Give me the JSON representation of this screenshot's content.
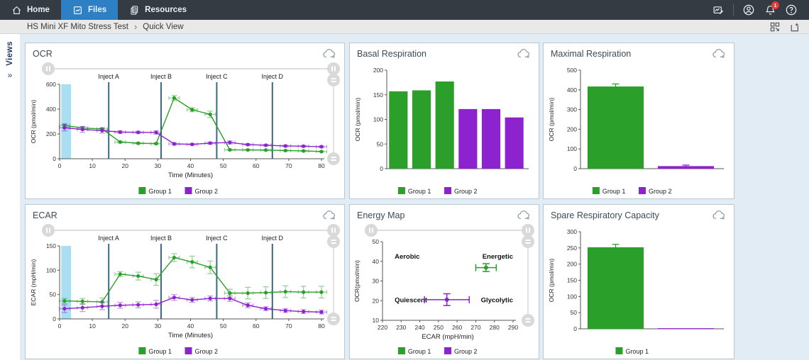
{
  "nav": {
    "tabs": [
      {
        "label": "Home",
        "icon": "home-icon"
      },
      {
        "label": "Files",
        "icon": "files-chart-icon"
      },
      {
        "label": "Resources",
        "icon": "documents-icon"
      }
    ],
    "active_tab": "Files",
    "notification_count": "1",
    "right_icons": [
      "report-edit-icon",
      "account-icon",
      "notifications-bell-icon",
      "help-icon"
    ]
  },
  "breadcrumb": {
    "parent": "HS Mini XF Mito Stress Test",
    "separator": "›",
    "current": "Quick View",
    "icons": [
      "layout-grid-icon",
      "new-view-icon"
    ]
  },
  "sidebar": {
    "label": "Views",
    "chevron": "»"
  },
  "colors": {
    "group1": "#2aa02a",
    "group2": "#8d23cf",
    "inject_line": "#3a6a80",
    "selection_band": "#9bd8f0",
    "active_tab": "#2e80c4",
    "nav_bg": "#343b42",
    "panel_border": "#b9c7d3",
    "page_bg": "#e2ecf5"
  },
  "chart_data": [
    {
      "id": "ocr",
      "type": "line",
      "title": "OCR",
      "xlabel": "Time (Minutes)",
      "ylabel": "OCR (pmol/min)",
      "xlim": [
        0,
        80
      ],
      "xticks": [
        0,
        10,
        20,
        30,
        40,
        50,
        60,
        70,
        80
      ],
      "ylim": [
        0,
        600
      ],
      "yticks": [
        0,
        200,
        400,
        600
      ],
      "inject_lines": [
        {
          "label": "Inject A",
          "x": 15
        },
        {
          "label": "Inject B",
          "x": 31
        },
        {
          "label": "Inject C",
          "x": 48
        },
        {
          "label": "Inject D",
          "x": 65
        }
      ],
      "selection_band": [
        0.5,
        3.5
      ],
      "xerr": 1.6,
      "x": [
        1.5,
        7,
        13,
        18.5,
        24,
        29.5,
        35,
        40.5,
        46,
        52,
        57.5,
        63,
        69,
        74.5,
        80
      ],
      "series": [
        {
          "name": "Group 1",
          "color": "group1",
          "values": [
            268,
            248,
            240,
            135,
            125,
            122,
            490,
            395,
            358,
            72,
            71,
            70,
            66,
            63,
            58
          ],
          "yerr": [
            15,
            12,
            9,
            7,
            6,
            6,
            20,
            16,
            26,
            4,
            4,
            4,
            4,
            4,
            4
          ]
        },
        {
          "name": "Group 2",
          "color": "group2",
          "values": [
            250,
            236,
            227,
            215,
            213,
            212,
            120,
            116,
            126,
            131,
            114,
            109,
            103,
            101,
            97
          ],
          "yerr": [
            26,
            24,
            20,
            11,
            9,
            13,
            11,
            7,
            9,
            13,
            7,
            7,
            7,
            7,
            7
          ]
        }
      ],
      "legend": [
        {
          "label": "Group 1",
          "color": "group1"
        },
        {
          "label": "Group 2",
          "color": "group2"
        }
      ],
      "has_sliders": true
    },
    {
      "id": "basal",
      "type": "bar",
      "title": "Basal Respiration",
      "ylabel": "OCR (pmol/min)",
      "ylim": [
        0,
        200
      ],
      "yticks": [
        0,
        50,
        100,
        150,
        200
      ],
      "bars": [
        {
          "group": "Group 1",
          "color": "group1",
          "value": 157
        },
        {
          "group": "Group 1",
          "color": "group1",
          "value": 159
        },
        {
          "group": "Group 1",
          "color": "group1",
          "value": 177
        },
        {
          "group": "Group 2",
          "color": "group2",
          "value": 121
        },
        {
          "group": "Group 2",
          "color": "group2",
          "value": 121
        },
        {
          "group": "Group 2",
          "color": "group2",
          "value": 104
        }
      ],
      "legend": [
        {
          "label": "Group 1",
          "color": "group1"
        },
        {
          "label": "Group 2",
          "color": "group2"
        }
      ]
    },
    {
      "id": "maximal",
      "type": "bar",
      "title": "Maximal Respiration",
      "ylabel": "OCR (pmol/min)",
      "ylim": [
        0,
        500
      ],
      "yticks": [
        0,
        100,
        200,
        300,
        400,
        500
      ],
      "bars": [
        {
          "group": "Group 1",
          "color": "group1",
          "value": 417,
          "err": 13
        },
        {
          "group": "Group 2",
          "color": "group2",
          "value": 13,
          "err": 5
        }
      ],
      "legend": [
        {
          "label": "Group 1",
          "color": "group1"
        },
        {
          "label": "Group 2",
          "color": "group2"
        }
      ]
    },
    {
      "id": "ecar",
      "type": "line",
      "title": "ECAR",
      "xlabel": "Time (Minutes)",
      "ylabel": "ECAR (mpH/min)",
      "xlim": [
        0,
        80
      ],
      "xticks": [
        0,
        10,
        20,
        30,
        40,
        50,
        60,
        70,
        80
      ],
      "ylim": [
        0,
        150
      ],
      "yticks": [
        0,
        50,
        100,
        150
      ],
      "inject_lines": [
        {
          "label": "Inject A",
          "x": 15
        },
        {
          "label": "Inject B",
          "x": 31
        },
        {
          "label": "Inject C",
          "x": 48
        },
        {
          "label": "Inject D",
          "x": 65
        }
      ],
      "selection_band": [
        0.5,
        3.5
      ],
      "xerr": 1.6,
      "x": [
        1.5,
        7,
        13,
        18.5,
        24,
        29.5,
        35,
        40.5,
        46,
        52,
        57.5,
        63,
        69,
        74.5,
        80
      ],
      "series": [
        {
          "name": "Group 1",
          "color": "group1",
          "values": [
            37,
            36,
            35,
            92,
            88,
            81,
            126,
            117,
            106,
            53,
            53,
            54,
            56,
            55,
            55
          ],
          "yerr": [
            5,
            6,
            8,
            5,
            8,
            12,
            8,
            12,
            13,
            8,
            12,
            12,
            12,
            12,
            12
          ]
        },
        {
          "name": "Group 2",
          "color": "group2",
          "values": [
            21,
            23,
            26,
            28,
            29,
            30,
            44,
            39,
            42,
            42,
            28,
            21,
            17,
            15,
            14
          ],
          "yerr": [
            8,
            8,
            7,
            6,
            6,
            8,
            6,
            5,
            5,
            6,
            5,
            4,
            4,
            4,
            4
          ]
        }
      ],
      "legend": [
        {
          "label": "Group 1",
          "color": "group1"
        },
        {
          "label": "Group 2",
          "color": "group2"
        }
      ],
      "has_sliders": true
    },
    {
      "id": "energy",
      "type": "scatter",
      "title": "Energy Map",
      "xlabel": "ECAR (mpH/min)",
      "ylabel": "OCR(pmol/min)",
      "xlim": [
        220,
        290
      ],
      "xticks": [
        220,
        230,
        240,
        250,
        260,
        270,
        280,
        290
      ],
      "ylim": [
        10,
        50
      ],
      "yticks": [
        10,
        20,
        30,
        40,
        50
      ],
      "quadrants": {
        "top_left": "Aerobic",
        "top_right": "Energetic",
        "bottom_left": "Quiescent",
        "bottom_right": "Glycolytic"
      },
      "points": [
        {
          "name": "Group 1",
          "color": "group1",
          "x": 275.5,
          "y": 36.8,
          "xerr": 5.5,
          "yerr": 2
        },
        {
          "name": "Group 2",
          "color": "group2",
          "x": 254.5,
          "y": 20.5,
          "xerr": 12,
          "yerr": 3
        }
      ],
      "legend": [
        {
          "label": "Group 1",
          "color": "group1"
        },
        {
          "label": "Group 2",
          "color": "group2"
        }
      ],
      "has_sliders": true
    },
    {
      "id": "spare",
      "type": "bar",
      "title": "Spare Respiratory Capacity",
      "ylabel": "OCR (pmol/min)",
      "ylim": [
        0,
        300
      ],
      "yticks": [
        0,
        50,
        100,
        150,
        200,
        250,
        300
      ],
      "bars": [
        {
          "group": "Group 1",
          "color": "group1",
          "value": 252,
          "err": 9
        },
        {
          "group": "Group 2",
          "color": "group2",
          "value": 2
        }
      ],
      "legend": [
        {
          "label": "Group 1",
          "color": "group1"
        }
      ]
    }
  ]
}
